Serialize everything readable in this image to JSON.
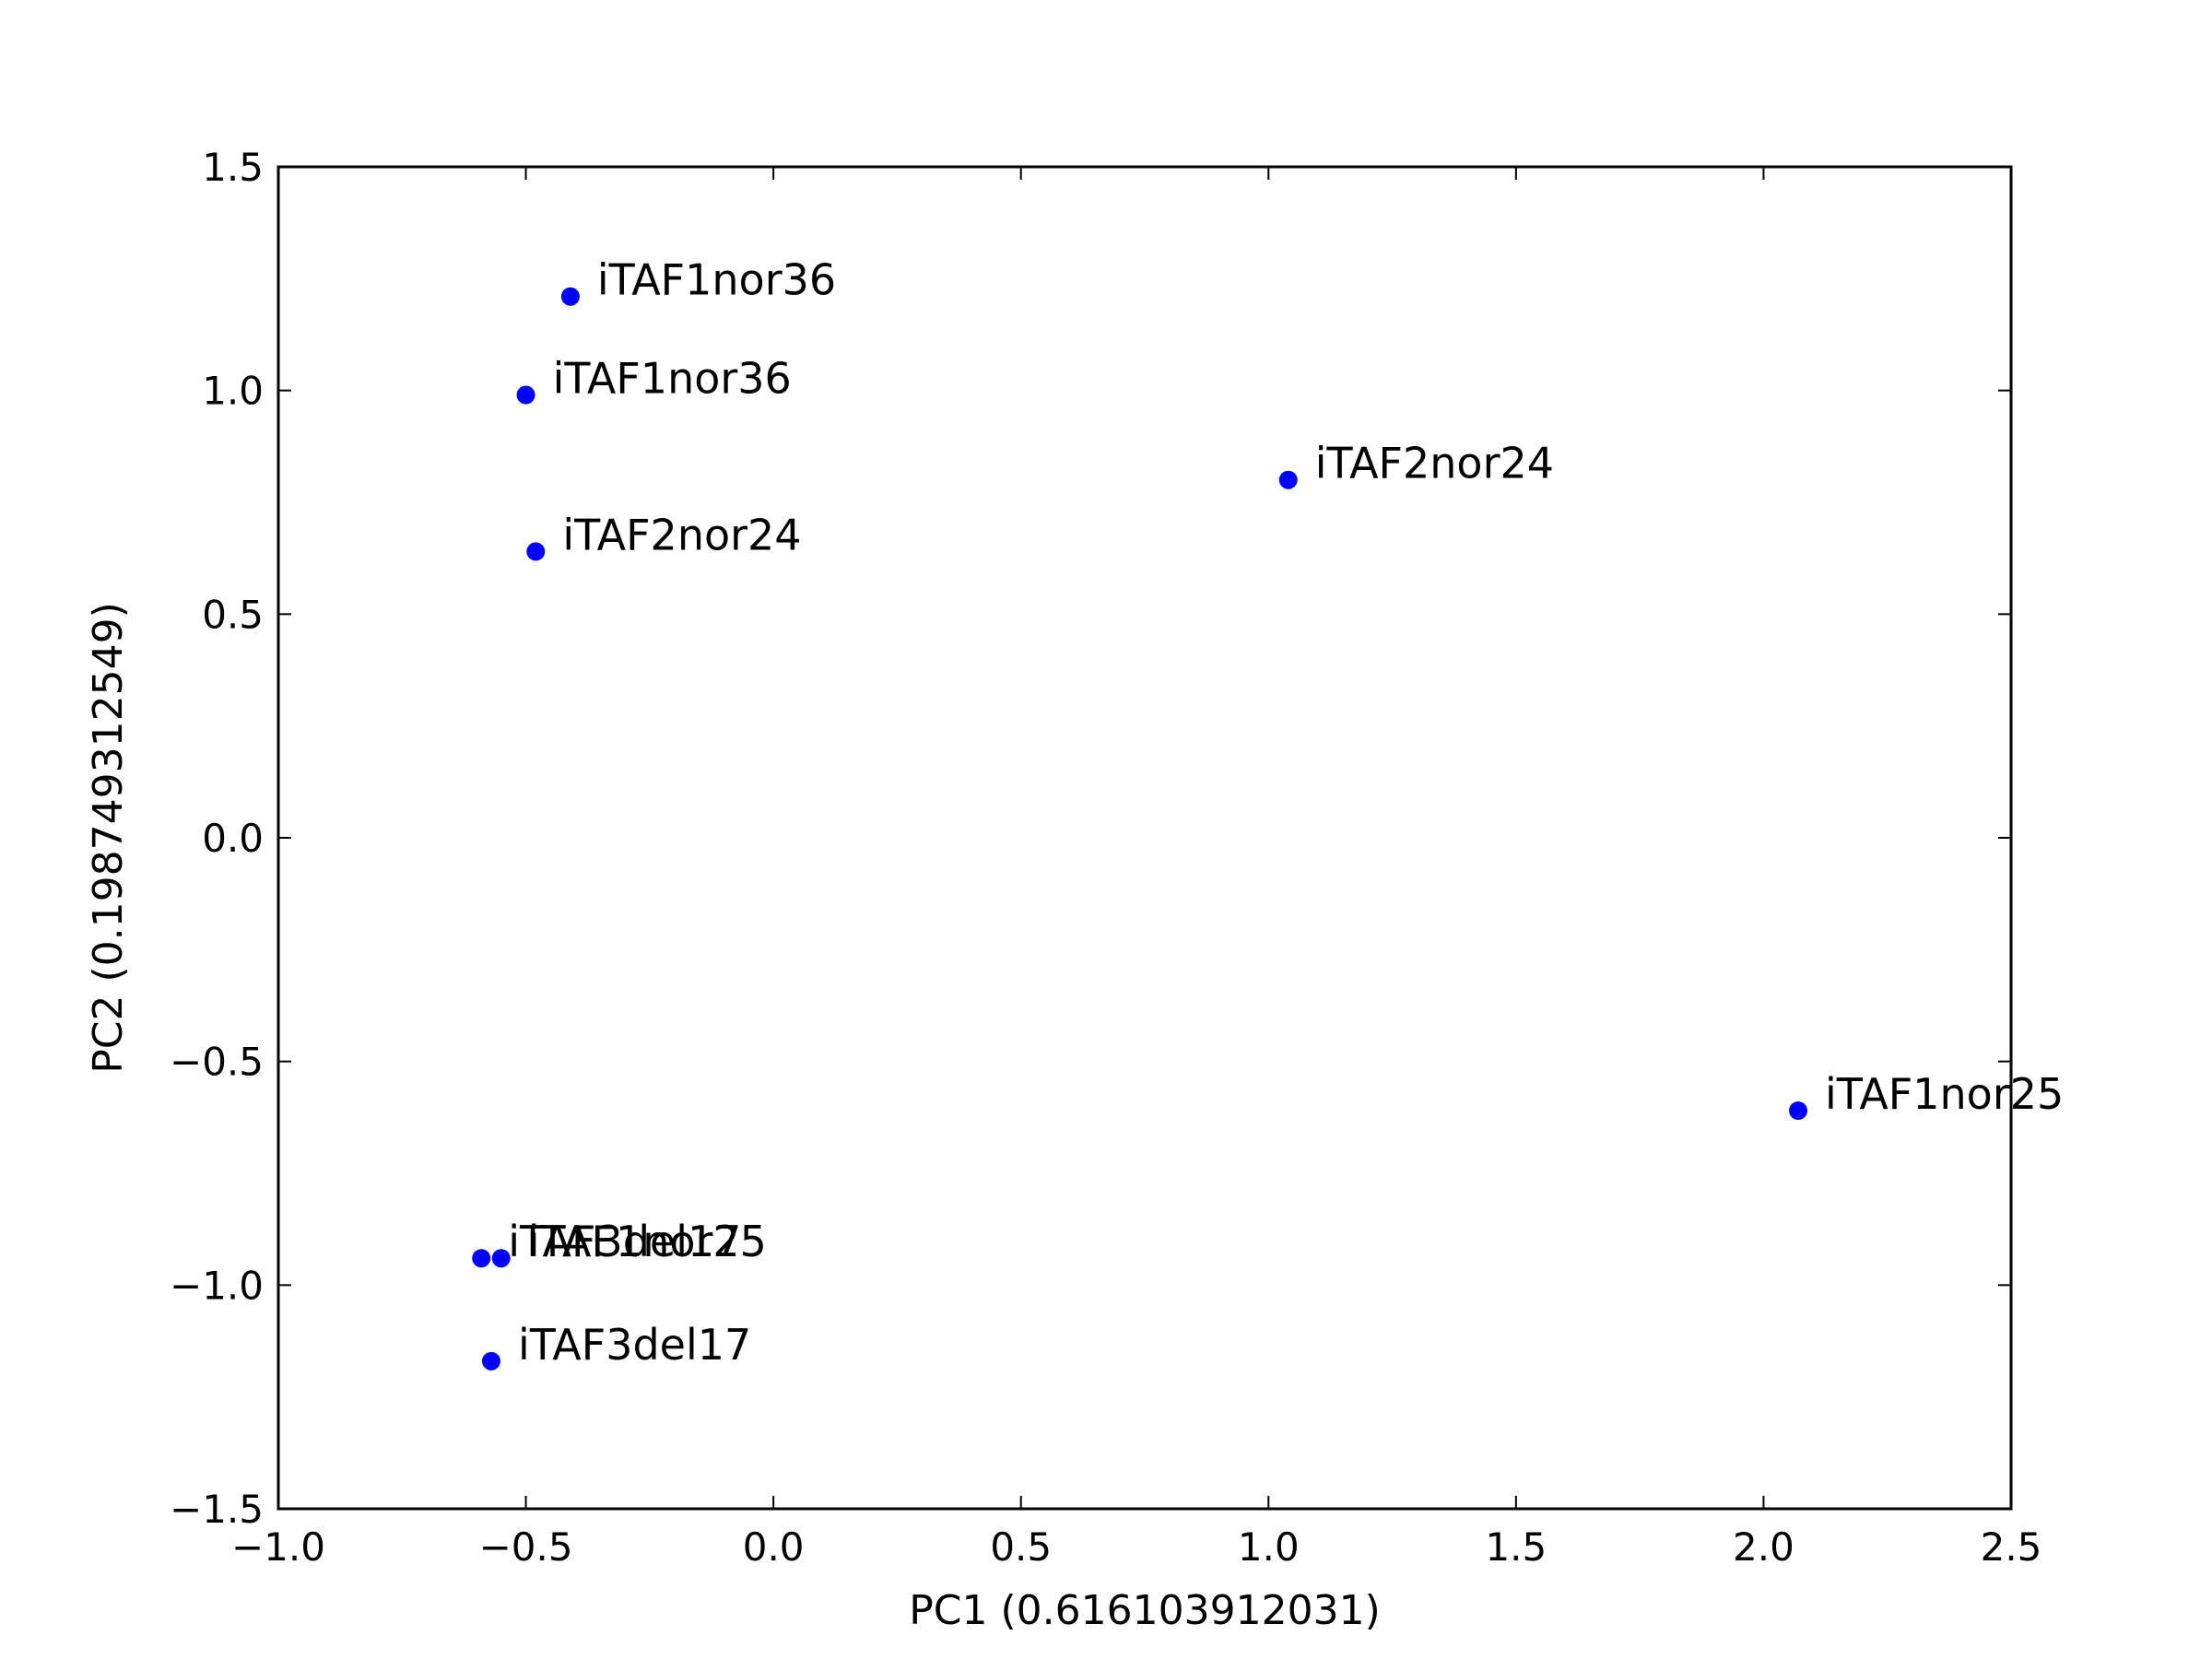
{
  "chart_data": {
    "type": "scatter",
    "title": "",
    "xlabel": "PC1 (0.616103912031)",
    "ylabel": "PC2 (0.198749312549)",
    "xlim": [
      -1.0,
      2.5
    ],
    "ylim": [
      -1.5,
      1.5
    ],
    "xticks": [
      -1.0,
      -0.5,
      0.0,
      0.5,
      1.0,
      1.5,
      2.0,
      2.5
    ],
    "yticks": [
      -1.5,
      -1.0,
      -0.5,
      0.0,
      0.5,
      1.0,
      1.5
    ],
    "xtick_labels": [
      "−1.0",
      "−0.5",
      "0.0",
      "0.5",
      "1.0",
      "1.5",
      "2.0",
      "2.5"
    ],
    "ytick_labels": [
      "−1.5",
      "−1.0",
      "−0.5",
      "0.0",
      "0.5",
      "1.0",
      "1.5"
    ],
    "grid": false,
    "marker_color": "#0000ff",
    "points": [
      {
        "label": "iTAF1nor36",
        "x": -0.41,
        "y": 1.21
      },
      {
        "label": "iTAF1nor36",
        "x": -0.5,
        "y": 0.99
      },
      {
        "label": "iTAF2nor24",
        "x": 1.04,
        "y": 0.8
      },
      {
        "label": "iTAF2nor24",
        "x": -0.48,
        "y": 0.64
      },
      {
        "label": "iTAF1nor25",
        "x": 2.07,
        "y": -0.61
      },
      {
        "label": "iTAF3del17",
        "x": -0.59,
        "y": -0.94
      },
      {
        "label": "iTAF1nor25",
        "x": -0.55,
        "y": -0.94
      },
      {
        "label": "iTAF3del17",
        "x": -0.57,
        "y": -1.17
      }
    ]
  }
}
